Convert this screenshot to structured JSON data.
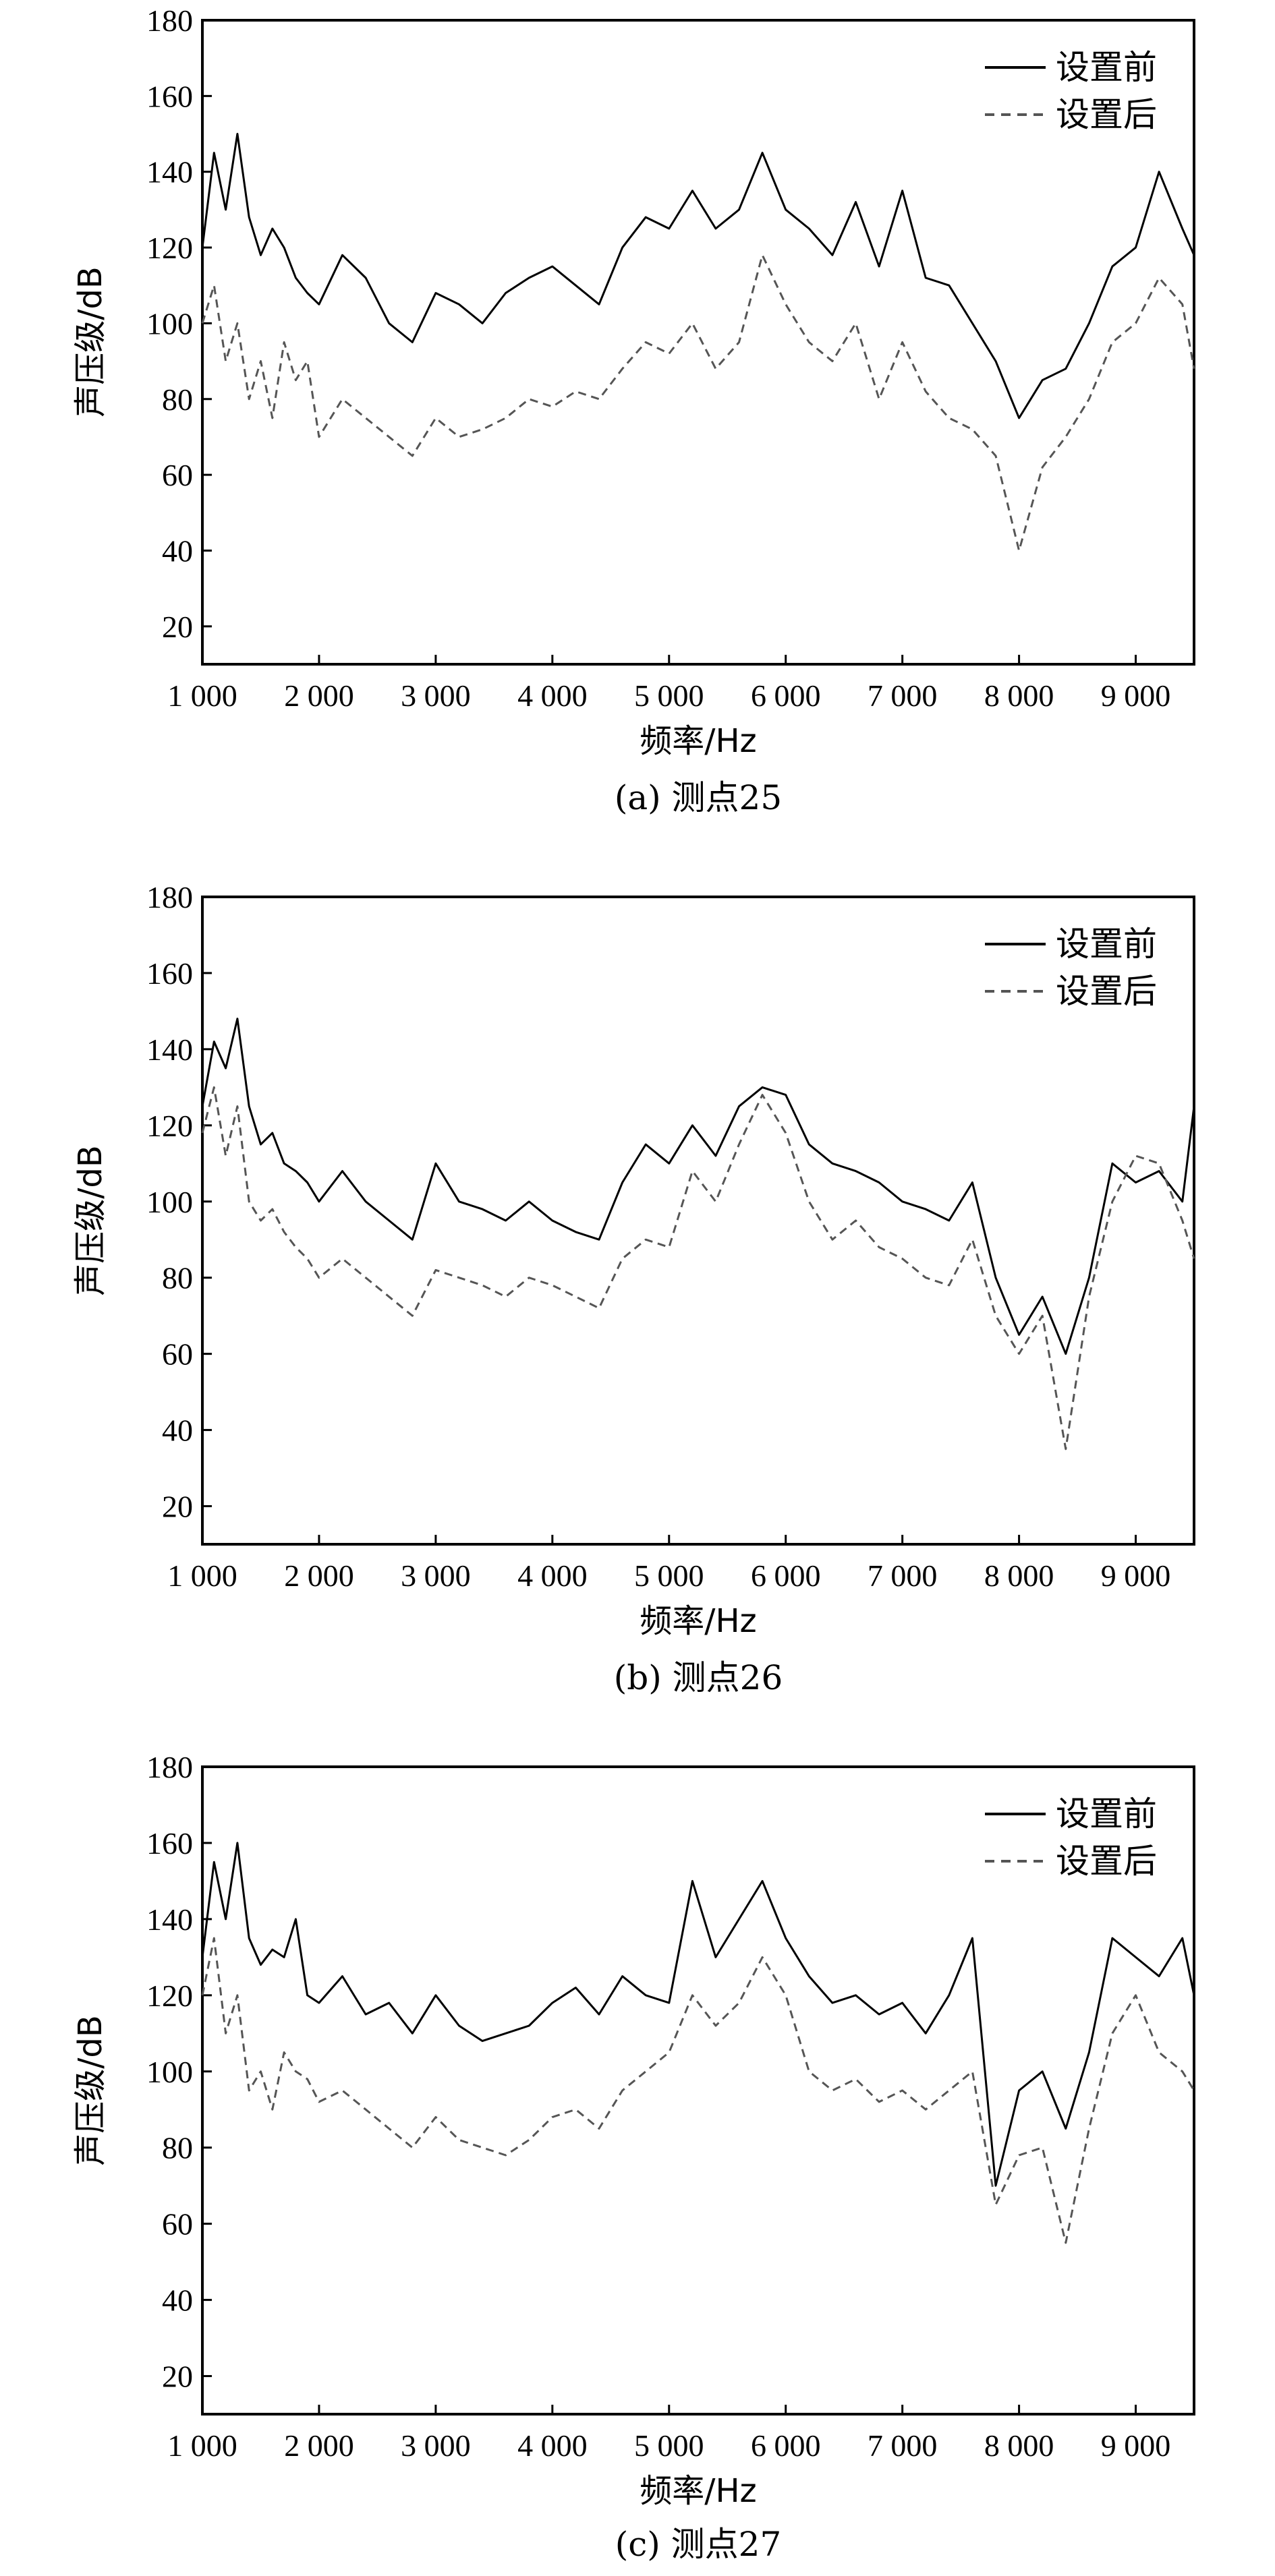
{
  "colors": {
    "before": "#000000",
    "after": "#555555"
  },
  "chart_data": [
    {
      "type": "line",
      "caption": "(a) 测点25",
      "xlabel": "频率/Hz",
      "ylabel": "声压级/dB",
      "xlim": [
        1000,
        9500
      ],
      "ylim": [
        10,
        180
      ],
      "xticks": [
        1000,
        2000,
        3000,
        4000,
        5000,
        6000,
        7000,
        8000,
        9000
      ],
      "xtick_labels": [
        "1 000",
        "2 000",
        "3 000",
        "4 000",
        "5 000",
        "6 000",
        "7 000",
        "8 000",
        "9 000"
      ],
      "yticks": [
        20,
        40,
        60,
        80,
        100,
        120,
        140,
        160,
        180
      ],
      "ytick_labels": [
        "20",
        "40",
        "60",
        "80",
        "100",
        "120",
        "140",
        "160",
        "180"
      ],
      "legend_position": "top-right",
      "series": [
        {
          "name": "设置前",
          "style": "solid",
          "x": [
            1000,
            1100,
            1200,
            1300,
            1400,
            1500,
            1600,
            1700,
            1800,
            1900,
            2000,
            2200,
            2400,
            2600,
            2800,
            3000,
            3200,
            3400,
            3600,
            3800,
            4000,
            4200,
            4400,
            4600,
            4800,
            5000,
            5200,
            5400,
            5600,
            5800,
            6000,
            6200,
            6400,
            6600,
            6800,
            7000,
            7200,
            7400,
            7600,
            7800,
            8000,
            8200,
            8400,
            8600,
            8800,
            9000,
            9200,
            9400,
            9500
          ],
          "y": [
            120,
            145,
            130,
            150,
            128,
            118,
            125,
            120,
            112,
            108,
            105,
            118,
            112,
            100,
            95,
            108,
            105,
            100,
            108,
            112,
            115,
            110,
            105,
            120,
            128,
            125,
            135,
            125,
            130,
            145,
            130,
            125,
            118,
            132,
            115,
            135,
            112,
            110,
            100,
            90,
            75,
            85,
            88,
            100,
            115,
            120,
            140,
            125,
            118
          ]
        },
        {
          "name": "设置后",
          "style": "dashed",
          "x": [
            1000,
            1100,
            1200,
            1300,
            1400,
            1500,
            1600,
            1700,
            1800,
            1900,
            2000,
            2200,
            2400,
            2600,
            2800,
            3000,
            3200,
            3400,
            3600,
            3800,
            4000,
            4200,
            4400,
            4600,
            4800,
            5000,
            5200,
            5400,
            5600,
            5800,
            6000,
            6200,
            6400,
            6600,
            6800,
            7000,
            7200,
            7400,
            7600,
            7800,
            8000,
            8200,
            8400,
            8600,
            8800,
            9000,
            9200,
            9400,
            9500
          ],
          "y": [
            100,
            110,
            90,
            100,
            80,
            90,
            75,
            95,
            85,
            90,
            70,
            80,
            75,
            70,
            65,
            75,
            70,
            72,
            75,
            80,
            78,
            82,
            80,
            88,
            95,
            92,
            100,
            88,
            95,
            118,
            105,
            95,
            90,
            100,
            80,
            95,
            82,
            75,
            72,
            65,
            40,
            62,
            70,
            80,
            95,
            100,
            112,
            105,
            88
          ]
        }
      ]
    },
    {
      "type": "line",
      "caption": "(b) 测点26",
      "xlabel": "频率/Hz",
      "ylabel": "声压级/dB",
      "xlim": [
        1000,
        9500
      ],
      "ylim": [
        10,
        180
      ],
      "xticks": [
        1000,
        2000,
        3000,
        4000,
        5000,
        6000,
        7000,
        8000,
        9000
      ],
      "xtick_labels": [
        "1 000",
        "2 000",
        "3 000",
        "4 000",
        "5 000",
        "6 000",
        "7 000",
        "8 000",
        "9 000"
      ],
      "yticks": [
        20,
        40,
        60,
        80,
        100,
        120,
        140,
        160,
        180
      ],
      "ytick_labels": [
        "20",
        "40",
        "60",
        "80",
        "100",
        "120",
        "140",
        "160",
        "180"
      ],
      "legend_position": "top-right",
      "series": [
        {
          "name": "设置前",
          "style": "solid",
          "x": [
            1000,
            1100,
            1200,
            1300,
            1400,
            1500,
            1600,
            1700,
            1800,
            1900,
            2000,
            2200,
            2400,
            2600,
            2800,
            3000,
            3200,
            3400,
            3600,
            3800,
            4000,
            4200,
            4400,
            4600,
            4800,
            5000,
            5200,
            5400,
            5600,
            5800,
            6000,
            6200,
            6400,
            6600,
            6800,
            7000,
            7200,
            7400,
            7600,
            7800,
            8000,
            8200,
            8400,
            8600,
            8800,
            9000,
            9200,
            9400,
            9500
          ],
          "y": [
            125,
            142,
            135,
            148,
            125,
            115,
            118,
            110,
            108,
            105,
            100,
            108,
            100,
            95,
            90,
            110,
            100,
            98,
            95,
            100,
            95,
            92,
            90,
            105,
            115,
            110,
            120,
            112,
            125,
            130,
            128,
            115,
            110,
            108,
            105,
            100,
            98,
            95,
            105,
            80,
            65,
            75,
            60,
            80,
            110,
            105,
            108,
            100,
            125
          ]
        },
        {
          "name": "设置后",
          "style": "dashed",
          "x": [
            1000,
            1100,
            1200,
            1300,
            1400,
            1500,
            1600,
            1700,
            1800,
            1900,
            2000,
            2200,
            2400,
            2600,
            2800,
            3000,
            3200,
            3400,
            3600,
            3800,
            4000,
            4200,
            4400,
            4600,
            4800,
            5000,
            5200,
            5400,
            5600,
            5800,
            6000,
            6200,
            6400,
            6600,
            6800,
            7000,
            7200,
            7400,
            7600,
            7800,
            8000,
            8200,
            8400,
            8600,
            8800,
            9000,
            9200,
            9400,
            9500
          ],
          "y": [
            118,
            130,
            112,
            125,
            100,
            95,
            98,
            92,
            88,
            85,
            80,
            85,
            80,
            75,
            70,
            82,
            80,
            78,
            75,
            80,
            78,
            75,
            72,
            85,
            90,
            88,
            108,
            100,
            115,
            128,
            118,
            100,
            90,
            95,
            88,
            85,
            80,
            78,
            90,
            70,
            60,
            70,
            35,
            75,
            100,
            112,
            110,
            95,
            85
          ]
        }
      ]
    },
    {
      "type": "line",
      "caption": "(c) 测点27",
      "xlabel": "频率/Hz",
      "ylabel": "声压级/dB",
      "xlim": [
        1000,
        9500
      ],
      "ylim": [
        10,
        180
      ],
      "xticks": [
        1000,
        2000,
        3000,
        4000,
        5000,
        6000,
        7000,
        8000,
        9000
      ],
      "xtick_labels": [
        "1 000",
        "2 000",
        "3 000",
        "4 000",
        "5 000",
        "6 000",
        "7 000",
        "8 000",
        "9 000"
      ],
      "yticks": [
        20,
        40,
        60,
        80,
        100,
        120,
        140,
        160,
        180
      ],
      "ytick_labels": [
        "20",
        "40",
        "60",
        "80",
        "100",
        "120",
        "140",
        "160",
        "180"
      ],
      "legend_position": "top-right",
      "series": [
        {
          "name": "设置前",
          "style": "solid",
          "x": [
            1000,
            1100,
            1200,
            1300,
            1400,
            1500,
            1600,
            1700,
            1800,
            1900,
            2000,
            2200,
            2400,
            2600,
            2800,
            3000,
            3200,
            3400,
            3600,
            3800,
            4000,
            4200,
            4400,
            4600,
            4800,
            5000,
            5200,
            5400,
            5600,
            5800,
            6000,
            6200,
            6400,
            6600,
            6800,
            7000,
            7200,
            7400,
            7600,
            7800,
            8000,
            8200,
            8400,
            8600,
            8800,
            9000,
            9200,
            9400,
            9500
          ],
          "y": [
            130,
            155,
            140,
            160,
            135,
            128,
            132,
            130,
            140,
            120,
            118,
            125,
            115,
            118,
            110,
            120,
            112,
            108,
            110,
            112,
            118,
            122,
            115,
            125,
            120,
            118,
            150,
            130,
            140,
            150,
            135,
            125,
            118,
            120,
            115,
            118,
            110,
            120,
            135,
            70,
            95,
            100,
            85,
            105,
            135,
            130,
            125,
            135,
            120
          ]
        },
        {
          "name": "设置后",
          "style": "dashed",
          "x": [
            1000,
            1100,
            1200,
            1300,
            1400,
            1500,
            1600,
            1700,
            1800,
            1900,
            2000,
            2200,
            2400,
            2600,
            2800,
            3000,
            3200,
            3400,
            3600,
            3800,
            4000,
            4200,
            4400,
            4600,
            4800,
            5000,
            5200,
            5400,
            5600,
            5800,
            6000,
            6200,
            6400,
            6600,
            6800,
            7000,
            7200,
            7400,
            7600,
            7800,
            8000,
            8200,
            8400,
            8600,
            8800,
            9000,
            9200,
            9400,
            9500
          ],
          "y": [
            120,
            135,
            110,
            120,
            95,
            100,
            90,
            105,
            100,
            98,
            92,
            95,
            90,
            85,
            80,
            88,
            82,
            80,
            78,
            82,
            88,
            90,
            85,
            95,
            100,
            105,
            120,
            112,
            118,
            130,
            120,
            100,
            95,
            98,
            92,
            95,
            90,
            95,
            100,
            65,
            78,
            80,
            55,
            85,
            110,
            120,
            105,
            100,
            95
          ]
        }
      ]
    }
  ]
}
